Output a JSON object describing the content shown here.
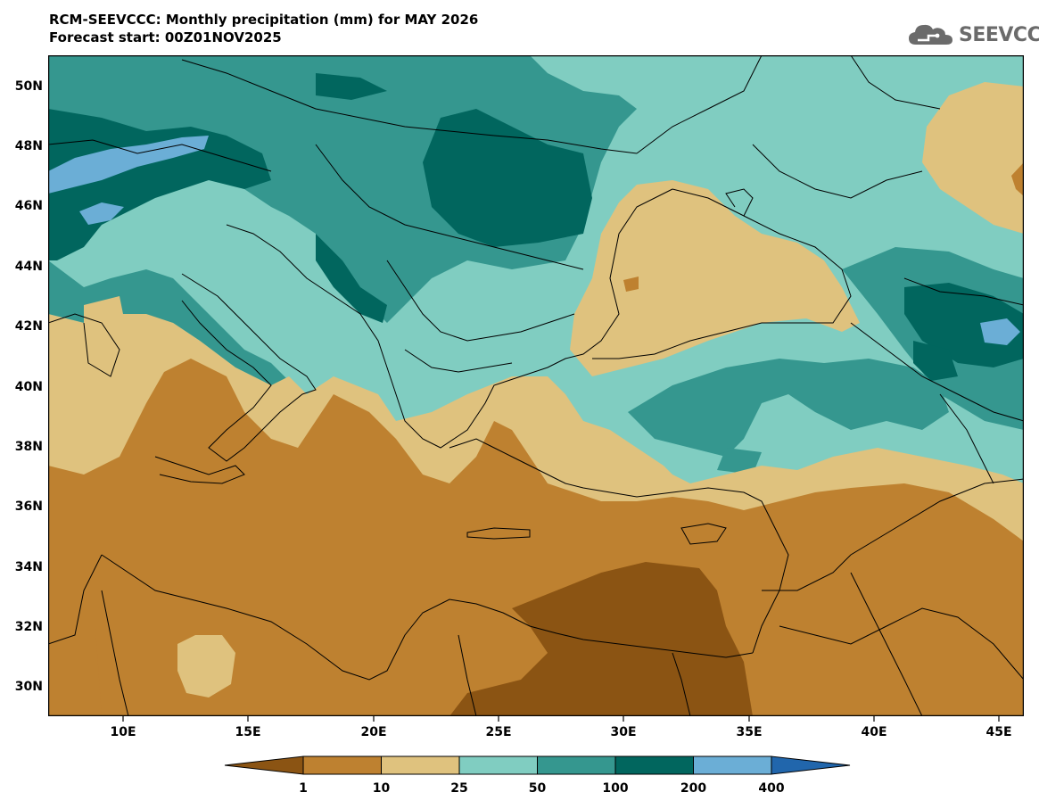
{
  "header": {
    "title_line1": "RCM-SEEVCCC: Monthly precipitation (mm) for MAY 2026",
    "title_line2": "Forecast start: 00Z01NOV2025"
  },
  "logo": {
    "text": "SEEVCCC",
    "icon": "cloud-icon"
  },
  "map": {
    "lon_range": [
      7,
      46
    ],
    "lat_range": [
      29,
      51
    ],
    "lat_ticks": [
      "50N",
      "48N",
      "46N",
      "44N",
      "42N",
      "40N",
      "38N",
      "36N",
      "34N",
      "32N",
      "30N"
    ],
    "lon_ticks": [
      "10E",
      "15E",
      "20E",
      "25E",
      "30E",
      "35E",
      "40E",
      "45E"
    ]
  },
  "colorbar": {
    "labels": [
      "1",
      "10",
      "25",
      "50",
      "100",
      "200",
      "400"
    ],
    "colors": [
      "#8b5413",
      "#be8130",
      "#dfc27e",
      "#80cdc1",
      "#35978f",
      "#01665e",
      "#6baed6",
      "#2166ac"
    ]
  }
}
